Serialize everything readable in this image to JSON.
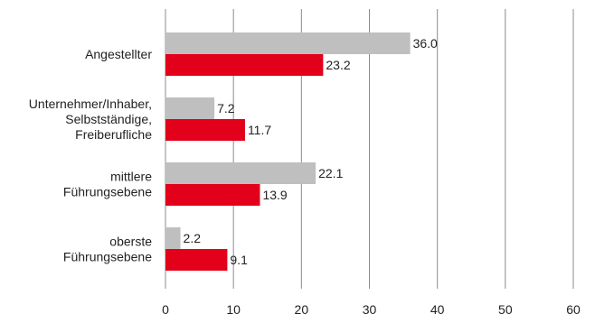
{
  "chart_data": {
    "type": "bar",
    "orientation": "horizontal",
    "categories": [
      [
        "Angestellter"
      ],
      [
        "Unternehmer/Inhaber,",
        "Selbstständige,",
        "Freiberufliche"
      ],
      [
        "mittlere",
        "Führungsebene"
      ],
      [
        "oberste",
        "Führungsebene"
      ]
    ],
    "series": [
      {
        "values": [
          36.0,
          7.2,
          22.1,
          2.2
        ],
        "color": "#bfbfbf"
      },
      {
        "values": [
          23.2,
          11.7,
          13.9,
          9.1
        ],
        "color": "#e2001a"
      }
    ],
    "xlim": [
      0,
      60
    ],
    "xticks": [
      "0",
      "10",
      "20",
      "30",
      "40",
      "50",
      "60"
    ],
    "grid": "vertical",
    "legend": "none",
    "value_format": "0.0"
  }
}
